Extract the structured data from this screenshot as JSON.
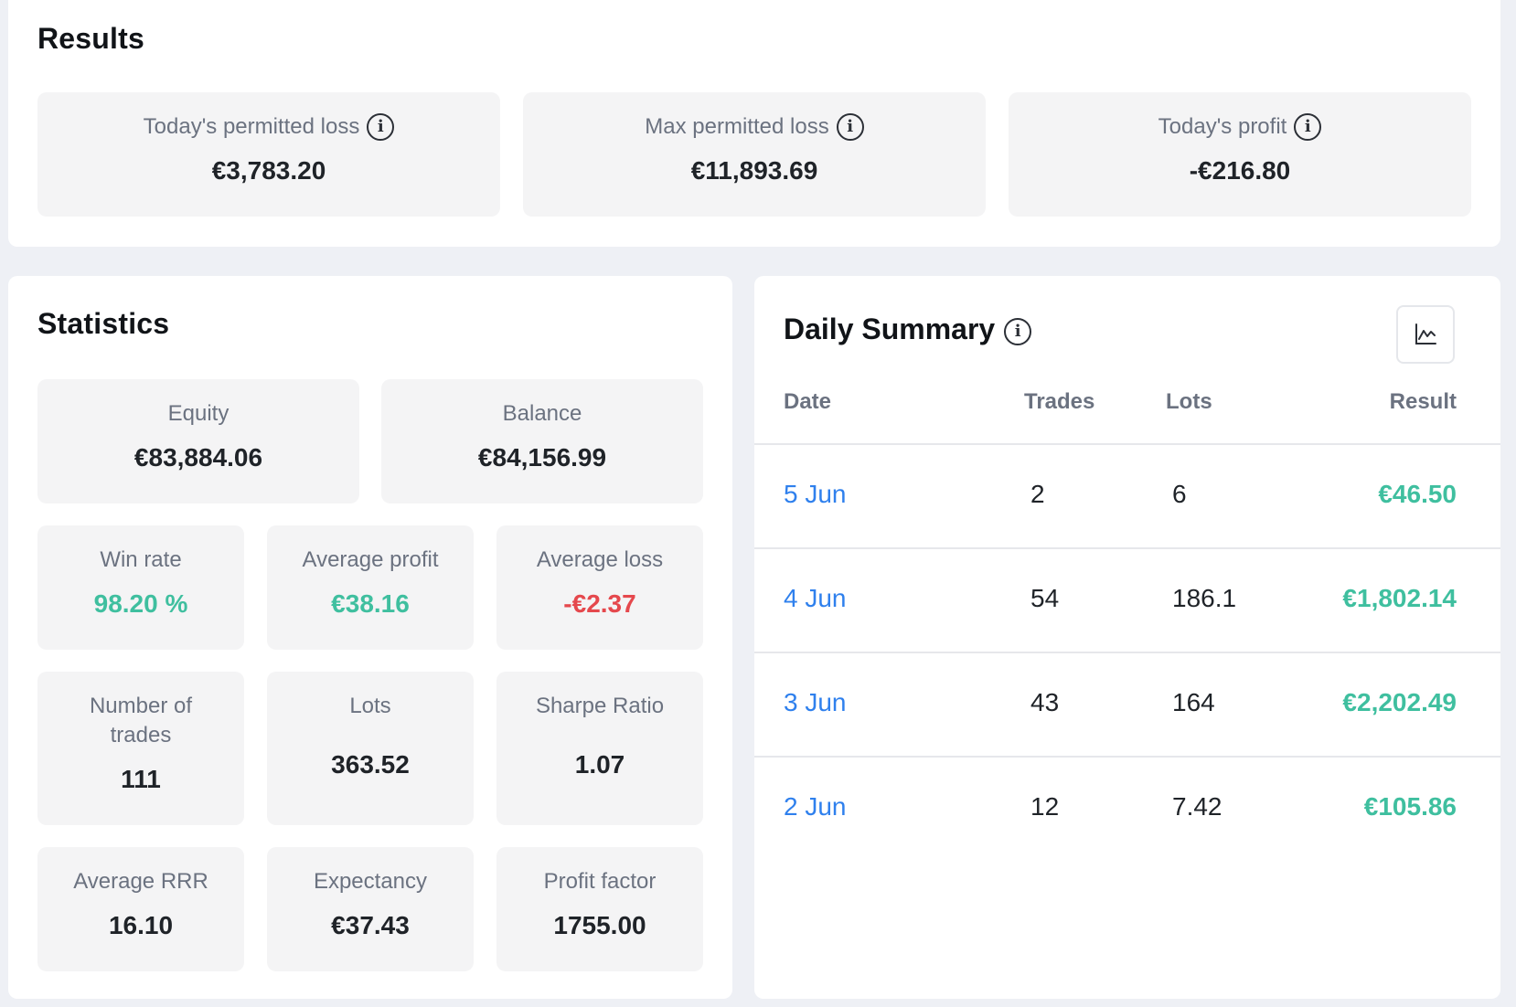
{
  "results": {
    "title": "Results",
    "cards": [
      {
        "label": "Today's permitted loss",
        "value": "€3,783.20"
      },
      {
        "label": "Max permitted loss",
        "value": "€11,893.69"
      },
      {
        "label": "Today's profit",
        "value": "-€216.80"
      }
    ]
  },
  "statistics": {
    "title": "Statistics",
    "equity": {
      "label": "Equity",
      "value": "€83,884.06"
    },
    "balance": {
      "label": "Balance",
      "value": "€84,156.99"
    },
    "win_rate": {
      "label": "Win rate",
      "value": "98.20 %"
    },
    "average_profit": {
      "label": "Average profit",
      "value": "€38.16"
    },
    "average_loss": {
      "label": "Average loss",
      "value": "-€2.37"
    },
    "number_of_trades": {
      "label_line1": "Number of",
      "label_line2": "trades",
      "value": "111"
    },
    "lots": {
      "label": "Lots",
      "value": "363.52"
    },
    "sharpe_ratio": {
      "label": "Sharpe Ratio",
      "value": "1.07"
    },
    "average_rrr": {
      "label": "Average RRR",
      "value": "16.10"
    },
    "expectancy": {
      "label": "Expectancy",
      "value": "€37.43"
    },
    "profit_factor": {
      "label": "Profit factor",
      "value": "1755.00"
    }
  },
  "daily_summary": {
    "title": "Daily Summary",
    "chart_button_icon": "line-chart-icon",
    "columns": {
      "date": "Date",
      "trades": "Trades",
      "lots": "Lots",
      "result": "Result"
    },
    "rows": [
      {
        "date": "5 Jun",
        "trades": "2",
        "lots": "6",
        "result": "€46.50"
      },
      {
        "date": "4 Jun",
        "trades": "54",
        "lots": "186.1",
        "result": "€1,802.14"
      },
      {
        "date": "3 Jun",
        "trades": "43",
        "lots": "164",
        "result": "€2,202.49"
      },
      {
        "date": "2 Jun",
        "trades": "12",
        "lots": "7.42",
        "result": "€105.86"
      }
    ]
  },
  "colors": {
    "positive": "#3fbf9f",
    "negative": "#e5484d",
    "link": "#2f80ed"
  }
}
